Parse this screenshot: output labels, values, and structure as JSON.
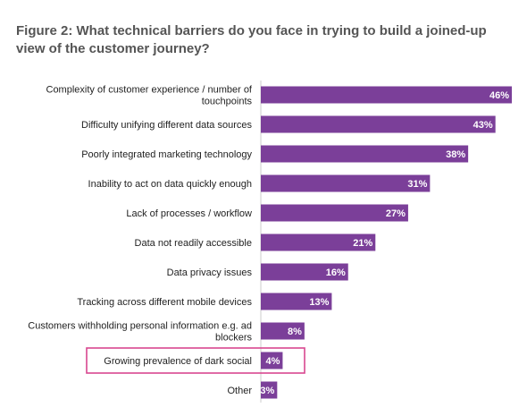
{
  "chart_data": {
    "type": "bar",
    "orientation": "horizontal",
    "title": "Figure 2: What technical barriers do you face in trying to build a joined-up view of the customer journey?",
    "xlabel": "",
    "ylabel": "",
    "categories": [
      "Complexity of customer experience / number of touchpoints",
      "Difficulty unifying different data sources",
      "Poorly integrated marketing technology",
      "Inability to act on data quickly enough",
      "Lack of processes / workflow",
      "Data not readily accessible",
      "Data privacy issues",
      "Tracking across different mobile devices",
      "Customers withholding personal information e.g. ad blockers",
      "Growing prevalence of dark social",
      "Other"
    ],
    "values": [
      46,
      43,
      38,
      31,
      27,
      21,
      16,
      13,
      8,
      4,
      3
    ],
    "value_labels": [
      "46%",
      "43%",
      "38%",
      "31%",
      "27%",
      "21%",
      "16%",
      "13%",
      "8%",
      "4%",
      "3%"
    ],
    "highlighted_category": "Growing prevalence of dark social",
    "xlim": [
      0,
      46
    ],
    "grid": false,
    "legend": "none"
  },
  "colors": {
    "bar": "#7b3f99",
    "highlight_box": "#d9478f",
    "title": "#555555",
    "axis": "#cccccc"
  }
}
